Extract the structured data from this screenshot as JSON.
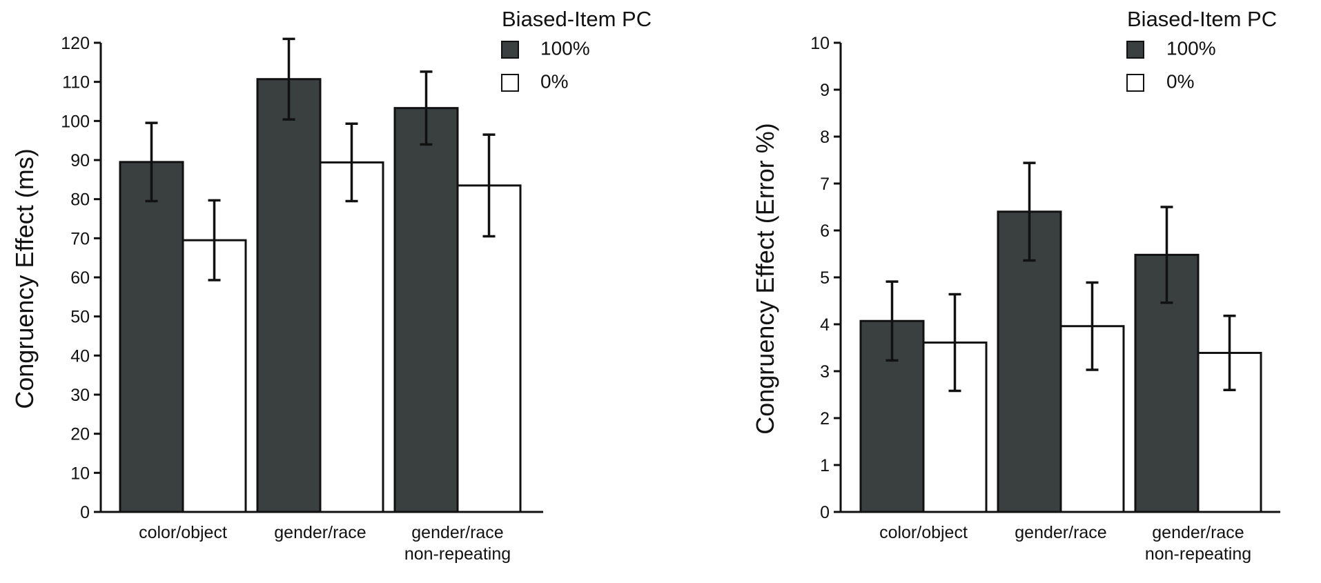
{
  "chart_data": [
    {
      "type": "bar",
      "ylabel": "Congruency Effect (ms)",
      "ylim": [
        0,
        120
      ],
      "yticks": [
        0,
        10,
        20,
        30,
        40,
        50,
        60,
        70,
        80,
        90,
        100,
        110,
        120
      ],
      "categories": [
        [
          "color/object"
        ],
        [
          "gender/race"
        ],
        [
          "gender/race",
          "non-repeating"
        ]
      ],
      "legend": {
        "title": "Biased-Item PC",
        "placement": "top-right"
      },
      "series": [
        {
          "name": "100%",
          "color": "#3a3f40",
          "values": [
            89.5,
            110.7,
            103.3
          ],
          "error": [
            10,
            10.3,
            9.3
          ]
        },
        {
          "name": "0%",
          "color": "#ffffff",
          "values": [
            69.5,
            89.4,
            83.5
          ],
          "error": [
            10.2,
            9.9,
            13
          ]
        }
      ],
      "grid": false
    },
    {
      "type": "bar",
      "ylabel": "Congruency Effect (Error %)",
      "ylim": [
        0,
        10
      ],
      "yticks": [
        0,
        1,
        2,
        3,
        4,
        5,
        6,
        7,
        8,
        9,
        10
      ],
      "categories": [
        [
          "color/object"
        ],
        [
          "gender/race"
        ],
        [
          "gender/race",
          "non-repeating"
        ]
      ],
      "legend": {
        "title": "Biased-Item PC",
        "placement": "top-right"
      },
      "series": [
        {
          "name": "100%",
          "color": "#3a3f40",
          "values": [
            4.07,
            6.4,
            5.48
          ],
          "error": [
            0.84,
            1.04,
            1.02
          ]
        },
        {
          "name": "0%",
          "color": "#ffffff",
          "values": [
            3.61,
            3.96,
            3.39
          ],
          "error": [
            1.03,
            0.93,
            0.79
          ]
        }
      ],
      "grid": false
    }
  ]
}
